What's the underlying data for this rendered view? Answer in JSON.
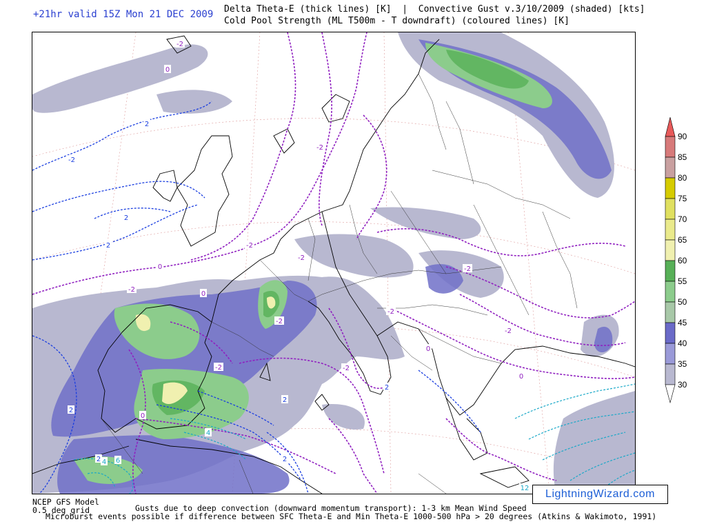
{
  "header": {
    "valid_time": "+21hr valid 15Z Mon 21 DEC 2009",
    "title_line1": "Delta Theta-E (thick lines) [K]  |  Convective Gust v.3/10/2009 (shaded) [kts]",
    "title_line2": "Cold Pool Strength (ML T500m - T downdraft) (coloured lines) [K]"
  },
  "legend": {
    "levels": [
      "90",
      "85",
      "80",
      "75",
      "70",
      "65",
      "60",
      "55",
      "50",
      "45",
      "40",
      "35",
      "30"
    ],
    "colors": {
      "90": "#e85a5a",
      "85": "#d77a7a",
      "80": "#c9a0a0",
      "75": "#d6cc00",
      "70": "#e0e060",
      "65": "#eaea8c",
      "60": "#f0f0b0",
      "55": "#58b058",
      "50": "#8ccc8c",
      "45": "#a8c8a8",
      "40": "#6a6ac8",
      "35": "#9a9ad8",
      "30": "#b8b8d0"
    }
  },
  "map": {
    "contour_labels": [
      "-2",
      "0",
      "-2",
      "2",
      "-2",
      "2",
      "2",
      "-2",
      "0",
      "-2",
      "-2",
      "-2",
      "0",
      "-2",
      "2",
      "4",
      "2",
      "2",
      "4",
      "6",
      "-2",
      "0",
      "2",
      "-2",
      "0",
      "-2",
      "0",
      "2",
      "-2",
      "12"
    ]
  },
  "branding": "LightningWizard.com",
  "footer": {
    "model_line1": "NCEP GFS Model",
    "model_line2": "0.5 deg grid",
    "line1": "Gusts due to deep convection (downward momentum transport): 1-3 km Mean Wind Speed",
    "line2": "Microburst events possible if difference between SFC Theta-E and Min Theta-E 1000-500 hPa > 20 degrees (Atkins & Wakimoto, 1991)"
  }
}
